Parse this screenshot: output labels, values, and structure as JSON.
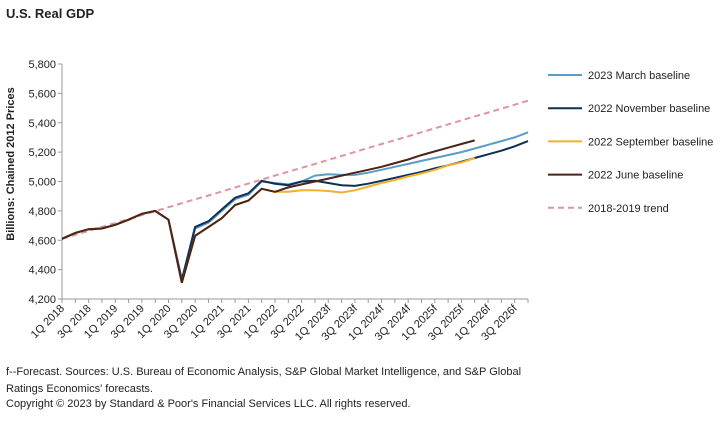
{
  "chart_data": {
    "type": "line",
    "title": "U.S. Real GDP",
    "y_label": "Billions: Chained 2012 Prices",
    "categories": [
      "1Q 2018",
      null,
      "3Q 2018",
      null,
      "1Q 2019",
      null,
      "3Q 2019",
      null,
      "1Q 2020",
      null,
      "3Q 2020",
      null,
      "1Q 2021",
      null,
      "3Q 2021",
      null,
      "1Q 2022",
      null,
      "3Q 2022",
      null,
      "1Q 2023f",
      null,
      "3Q 2023f",
      null,
      "1Q 2024f",
      null,
      "3Q 2024f",
      null,
      "1Q 2025f",
      null,
      "3Q 2025f",
      null,
      "1Q 2026f",
      null,
      "3Q 2026f",
      null
    ],
    "ylim": [
      4200,
      5800
    ],
    "yticks": [
      {
        "value": 4200,
        "label": "4,200"
      },
      {
        "value": 4400,
        "label": "4,400"
      },
      {
        "value": 4600,
        "label": "4,600"
      },
      {
        "value": 4800,
        "label": "4,800"
      },
      {
        "value": 5000,
        "label": "5,000"
      },
      {
        "value": 5200,
        "label": "5,200"
      },
      {
        "value": 5400,
        "label": "5,400"
      },
      {
        "value": 5600,
        "label": "5,600"
      },
      {
        "value": 5800,
        "label": "5,800"
      }
    ],
    "series": [
      {
        "name": "2023 March baseline",
        "color": "#5b9cc4",
        "values": [
          4610,
          4650,
          4675,
          4680,
          4705,
          4740,
          4780,
          4800,
          4740,
          4330,
          4680,
          4720,
          4800,
          4880,
          4910,
          5000,
          4990,
          4980,
          5000,
          5040,
          5050,
          5045,
          5045,
          5060,
          5080,
          5100,
          5120,
          5140,
          5160,
          5180,
          5200,
          5225,
          5250,
          5275,
          5300,
          5335
        ]
      },
      {
        "name": "2022 November baseline",
        "color": "#0d2f57",
        "values": [
          4610,
          4650,
          4675,
          4680,
          4705,
          4740,
          4780,
          4800,
          4740,
          4330,
          4690,
          4730,
          4810,
          4890,
          4920,
          5005,
          4985,
          4975,
          5000,
          5005,
          4990,
          4975,
          4970,
          4985,
          5005,
          5025,
          5045,
          5065,
          5090,
          5110,
          5135,
          5160,
          5185,
          5210,
          5240,
          5275
        ]
      },
      {
        "name": "2022 September baseline",
        "color": "#f2b02e",
        "values": [
          4610,
          4650,
          4675,
          4680,
          4705,
          4740,
          4780,
          4800,
          4740,
          4310,
          4630,
          4690,
          4750,
          4840,
          4870,
          4950,
          4930,
          4930,
          4940,
          4940,
          4935,
          4925,
          4940,
          4965,
          4990,
          5010,
          5035,
          5055,
          5080,
          5110,
          5130,
          5160,
          null,
          null,
          null,
          null
        ]
      },
      {
        "name": "2022 June baseline",
        "color": "#4a2418",
        "values": [
          4610,
          4650,
          4675,
          4680,
          4705,
          4740,
          4780,
          4800,
          4740,
          4310,
          4630,
          4690,
          4750,
          4840,
          4870,
          4950,
          4930,
          4960,
          4980,
          5000,
          5020,
          5040,
          5060,
          5080,
          5100,
          5125,
          5150,
          5180,
          5205,
          5230,
          5255,
          5280,
          null,
          null,
          null,
          null
        ]
      },
      {
        "name": "2018-2019 trend",
        "color": "#e0949e",
        "dashed": true,
        "values": [
          4610,
          4637,
          4664,
          4691,
          4717,
          4744,
          4771,
          4798,
          4825,
          4852,
          4879,
          4905,
          4932,
          4959,
          4986,
          5013,
          5040,
          5067,
          5093,
          5120,
          5147,
          5174,
          5201,
          5228,
          5255,
          5281,
          5308,
          5335,
          5362,
          5389,
          5416,
          5443,
          5469,
          5496,
          5523,
          5550
        ]
      }
    ],
    "note": "f--Forecast. Sources: U.S. Bureau of Economic Analysis, S&P Global Market Intelligence, and S&P Global Ratings Economics' forecasts.",
    "copyright": "Copyright © 2023 by Standard & Poor's Financial Services LLC. All rights reserved."
  }
}
